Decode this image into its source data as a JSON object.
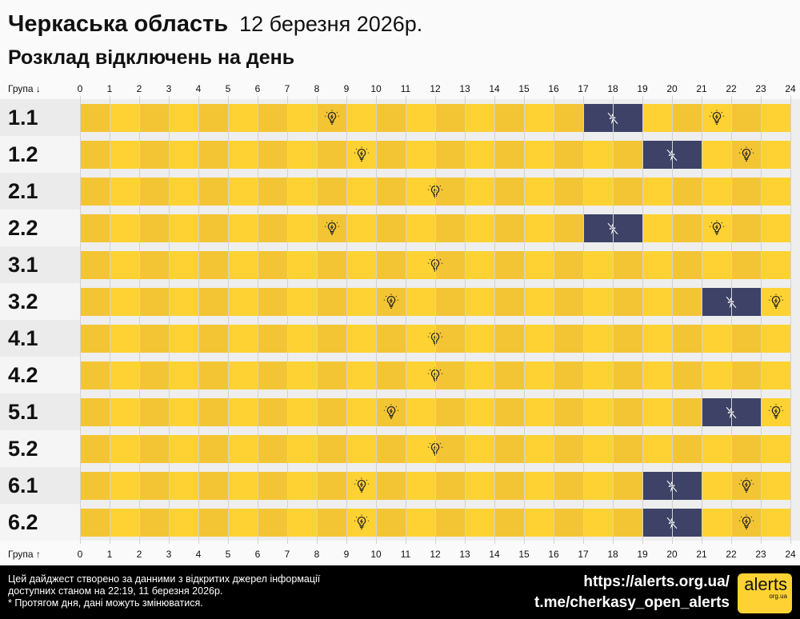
{
  "header": {
    "region": "Черкаська область",
    "date": "12 березня 2026р.",
    "subtitle": "Розклад відключень на день"
  },
  "chart_data": {
    "type": "timeline",
    "axis_label_top": "Група ↓",
    "axis_label_bottom": "Група ↑",
    "x_ticks": [
      "0",
      "1",
      "2",
      "3",
      "4",
      "5",
      "6",
      "7",
      "8",
      "9",
      "10",
      "11",
      "12",
      "13",
      "14",
      "15",
      "16",
      "17",
      "18",
      "19",
      "20",
      "21",
      "22",
      "23",
      "24"
    ],
    "xlim": [
      0,
      24
    ],
    "colors": {
      "power_on": "#fed233",
      "power_on_alt": "#f3c535",
      "power_off": "#3d4266"
    },
    "groups": [
      {
        "name": "1.1",
        "outages": [
          [
            17,
            19
          ]
        ]
      },
      {
        "name": "1.2",
        "outages": [
          [
            19,
            21
          ]
        ]
      },
      {
        "name": "2.1",
        "outages": []
      },
      {
        "name": "2.2",
        "outages": [
          [
            17,
            19
          ]
        ]
      },
      {
        "name": "3.1",
        "outages": []
      },
      {
        "name": "3.2",
        "outages": [
          [
            21,
            23
          ]
        ]
      },
      {
        "name": "4.1",
        "outages": []
      },
      {
        "name": "4.2",
        "outages": []
      },
      {
        "name": "5.1",
        "outages": [
          [
            21,
            23
          ]
        ]
      },
      {
        "name": "5.2",
        "outages": []
      },
      {
        "name": "6.1",
        "outages": [
          [
            19,
            21
          ]
        ]
      },
      {
        "name": "6.2",
        "outages": [
          [
            19,
            21
          ]
        ]
      }
    ]
  },
  "footer": {
    "note_lines": [
      "Цей дайджест створено за данними з відкритих джерел інформації",
      "доступних станом на 22:19, 11 березня 2026р.",
      "* Протягом дня, дані можуть змінюватися."
    ],
    "link_site": "https://alerts.org.ua/",
    "link_telegram": "t.me/cherkasy_open_alerts",
    "logo_text": "alerts",
    "logo_sub": "org.ua"
  }
}
